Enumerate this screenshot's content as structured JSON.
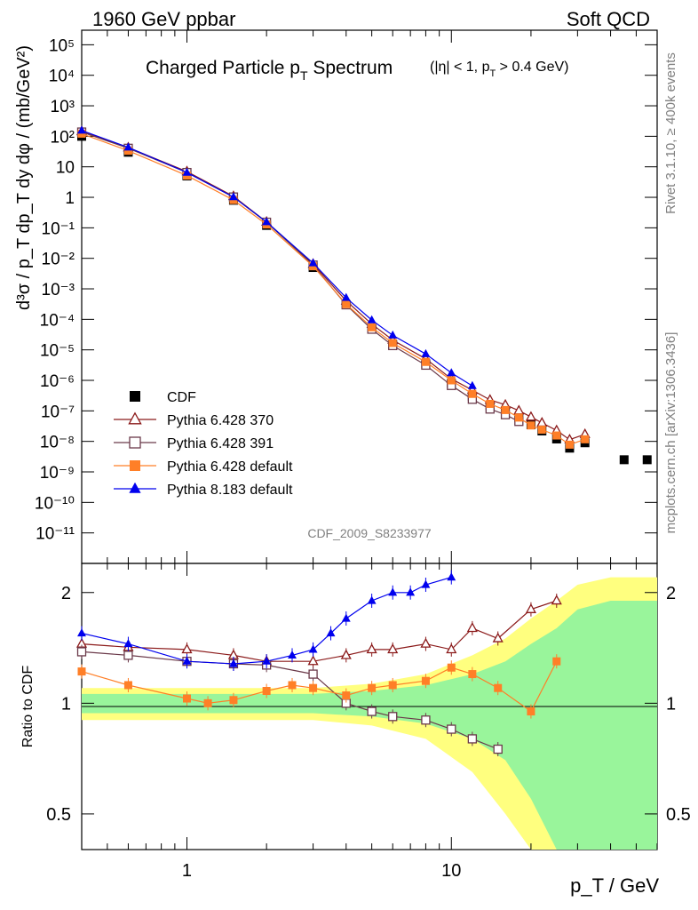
{
  "chart_data": {
    "type": "scatter",
    "top_left_label": "1960 GeV ppbar",
    "top_right_label": "Soft QCD",
    "title_main": "Charged Particle p",
    "title_main_sub": "T",
    "title_main_end": " Spectrum",
    "title_cut_1": "(|η| < 1, p",
    "title_cut_sub": "T",
    "title_cut_2": " > 0.4 GeV)",
    "ylabel_upper": "d³σ / p_T dp_T dy dφ / (mb/GeV²)",
    "ylabel_ratio": "Ratio to CDF",
    "xlabel": "p_T / GeV",
    "analysis_label": "CDF_2009_S8233977",
    "side_label_top": "Rivet 3.1.10, ≥ 400k events",
    "side_label_bottom": "mcplots.cern.ch [arXiv:1306.3436]",
    "x_log": true,
    "xlim": [
      0.4,
      60
    ],
    "upper_ylim": [
      1e-12,
      300000.0
    ],
    "upper_y_log": true,
    "ratio_ylim": [
      0.4,
      2.4
    ],
    "ratio_y_log": true,
    "x_tick_labels": [
      "1",
      "10"
    ],
    "upper_y_tick_labels": [
      "10⁵",
      "10⁴",
      "10³",
      "10²",
      "10",
      "1",
      "10⁻¹",
      "10⁻²",
      "10⁻³",
      "10⁻⁴",
      "10⁻⁵",
      "10⁻⁶",
      "10⁻⁷",
      "10⁻⁸",
      "10⁻⁹",
      "10⁻¹⁰",
      "10⁻¹¹"
    ],
    "ratio_y_tick_labels": [
      "2",
      "1",
      "0.5"
    ],
    "legend": {
      "placement": "lower-left",
      "entries": [
        {
          "name": "CDF",
          "color": "#000000",
          "marker": "square-filled"
        },
        {
          "name": "Pythia 6.428 370",
          "color": "#8b1a1a",
          "marker": "triangle-open"
        },
        {
          "name": "Pythia 6.428 391",
          "color": "#6b3a4a",
          "marker": "square-open"
        },
        {
          "name": "Pythia 6.428 default",
          "color": "#ff7f27",
          "marker": "square-filled"
        },
        {
          "name": "Pythia 8.183 default",
          "color": "#0000ee",
          "marker": "triangle-filled"
        }
      ]
    },
    "data_spectrum": {
      "x": [
        0.4,
        0.6,
        1.0,
        1.5,
        2.0,
        3.0,
        4.0,
        5.0,
        6.0,
        8.0,
        10.0,
        12.0,
        14.0,
        16.0,
        18.0,
        20.0,
        22.0,
        25.0,
        28.0,
        32.0,
        45.0,
        55.0
      ],
      "y": [
        100,
        30,
        5,
        0.8,
        0.12,
        0.005,
        0.0003,
        5e-05,
        1.5e-05,
        3.5e-06,
        8e-07,
        3e-07,
        1.5e-07,
        1e-07,
        6e-08,
        3.5e-08,
        2.2e-08,
        1.2e-08,
        6e-09,
        9e-09,
        2.5e-09,
        2.5e-09
      ]
    },
    "ratio_series": [
      {
        "name": "Pythia 6.428 370",
        "x": [
          0.4,
          0.6,
          1.0,
          1.5,
          2.0,
          3.0,
          4.0,
          5.0,
          6.0,
          8.0,
          10.0,
          12.0,
          15.0,
          20.0,
          25.0
        ],
        "y": [
          1.45,
          1.42,
          1.4,
          1.35,
          1.3,
          1.3,
          1.35,
          1.4,
          1.4,
          1.45,
          1.4,
          1.6,
          1.5,
          1.8,
          1.9
        ]
      },
      {
        "name": "Pythia 6.428 391",
        "x": [
          0.4,
          0.6,
          1.0,
          1.5,
          2.0,
          3.0,
          4.0,
          5.0,
          6.0,
          8.0,
          10.0,
          12.0,
          15.0
        ],
        "y": [
          1.38,
          1.35,
          1.3,
          1.28,
          1.27,
          1.2,
          1.0,
          0.95,
          0.92,
          0.9,
          0.85,
          0.8,
          0.75
        ]
      },
      {
        "name": "Pythia 6.428 default",
        "x": [
          0.4,
          0.6,
          1.0,
          1.2,
          1.5,
          2.0,
          2.5,
          3.0,
          4.0,
          5.0,
          6.0,
          8.0,
          10.0,
          12.0,
          15.0,
          20.0,
          25.0
        ],
        "y": [
          1.22,
          1.12,
          1.03,
          1.0,
          1.02,
          1.08,
          1.12,
          1.1,
          1.05,
          1.1,
          1.12,
          1.15,
          1.25,
          1.2,
          1.1,
          0.95,
          1.3
        ]
      },
      {
        "name": "Pythia 8.183 default",
        "x": [
          0.4,
          0.6,
          1.0,
          1.5,
          2.0,
          2.5,
          3.0,
          3.5,
          4.0,
          5.0,
          6.0,
          7.0,
          8.0,
          10.0
        ],
        "y": [
          1.55,
          1.45,
          1.3,
          1.28,
          1.3,
          1.35,
          1.4,
          1.55,
          1.7,
          1.9,
          2.0,
          2.0,
          2.1,
          2.2
        ]
      }
    ],
    "uncertainty_band": {
      "x": [
        0.4,
        1.0,
        3.0,
        5.0,
        8.0,
        12.0,
        16.0,
        20.0,
        25.0,
        30.0,
        40.0,
        60.0
      ],
      "green_half_width": [
        0.06,
        0.06,
        0.06,
        0.08,
        0.12,
        0.2,
        0.3,
        0.45,
        0.6,
        0.8,
        0.9,
        0.9
      ],
      "yellow_half_width": [
        0.1,
        0.1,
        0.1,
        0.13,
        0.2,
        0.35,
        0.5,
        0.7,
        0.9,
        1.1,
        1.2,
        1.2
      ]
    }
  }
}
